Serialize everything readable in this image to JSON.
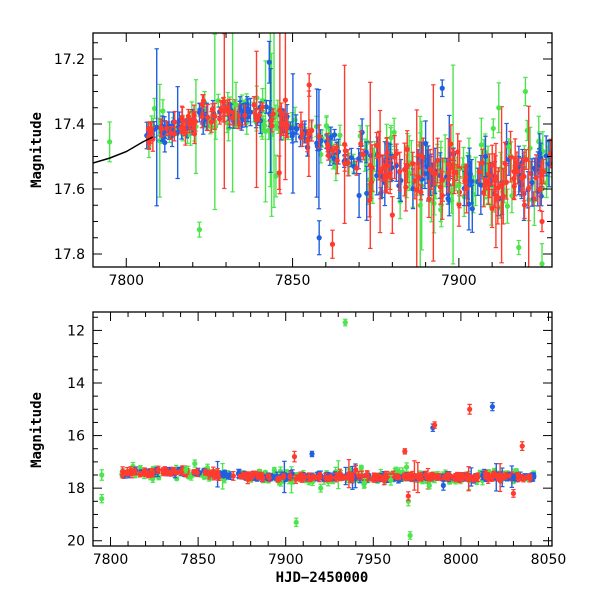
{
  "colors": {
    "green": "#4ee44e",
    "blue": "#1f5fe0",
    "red": "#ff3b2f",
    "model": "#000000"
  },
  "chart_data": [
    {
      "type": "scatter",
      "xlim": [
        7790,
        7928
      ],
      "ylim": [
        17.84,
        17.12
      ],
      "y_inverted": true,
      "grid": false,
      "ylabel": "Magnitude",
      "xlabel": "",
      "xticks": [
        7800,
        7850,
        7900
      ],
      "yticks": [
        17.2,
        17.4,
        17.6,
        17.8
      ],
      "model_curve": {
        "x": [
          7790,
          7795,
          7800,
          7805,
          7808
        ],
        "y": [
          17.52,
          17.505,
          17.485,
          17.455,
          17.44
        ]
      },
      "series": [
        {
          "color_key": "green",
          "isolated": [
            [
              7795,
              17.455
            ],
            [
              7822,
              17.725
            ],
            [
              7845,
              17.56
            ],
            [
              7833,
              17.34
            ],
            [
              7900,
              17.59
            ],
            [
              7915,
              17.47
            ],
            [
              7912,
              17.35
            ],
            [
              7918,
              17.78
            ],
            [
              7925,
              17.83
            ],
            [
              7920,
              17.3
            ]
          ]
        },
        {
          "color_key": "blue",
          "isolated": [
            [
              7843,
              17.21
            ],
            [
              7858,
              17.75
            ],
            [
              7870,
              17.62
            ],
            [
              7890,
              17.46
            ],
            [
              7895,
              17.29
            ],
            [
              7908,
              17.5
            ],
            [
              7922,
              17.58
            ]
          ]
        },
        {
          "color_key": "red",
          "isolated": [
            [
              7855,
              17.28
            ],
            [
              7862,
              17.77
            ],
            [
              7880,
              17.68
            ],
            [
              7895,
              17.62
            ],
            [
              7902,
              17.58
            ],
            [
              7910,
              17.66
            ],
            [
              7925,
              17.7
            ],
            [
              7846,
              17.55
            ]
          ]
        }
      ]
    },
    {
      "type": "scatter",
      "xlim": [
        7790,
        8052
      ],
      "ylim": [
        20.2,
        11.3
      ],
      "y_inverted": true,
      "grid": false,
      "ylabel": "Magnitude",
      "xlabel": "HJD−2450000",
      "xticks": [
        7800,
        7850,
        7900,
        7950,
        8000,
        8050
      ],
      "yticks": [
        12,
        14,
        16,
        18,
        20
      ],
      "series": [
        {
          "color_key": "green",
          "isolated": [
            [
              7795,
              17.5
            ],
            [
              7795,
              18.4
            ],
            [
              7843,
              17.3
            ],
            [
              7906,
              19.3
            ],
            [
              7934,
              11.7
            ],
            [
              7970,
              18.5
            ],
            [
              7971,
              19.8
            ],
            [
              7969,
              17.2
            ],
            [
              7945,
              17.8
            ],
            [
              7982,
              17.9
            ],
            [
              7960,
              17.7
            ],
            [
              7920,
              18.0
            ]
          ]
        },
        {
          "color_key": "blue",
          "isolated": [
            [
              7984,
              15.7
            ],
            [
              8018,
              14.9
            ],
            [
              7915,
              16.7
            ],
            [
              7990,
              17.9
            ],
            [
              8030,
              17.6
            ]
          ]
        },
        {
          "color_key": "red",
          "isolated": [
            [
              7905,
              16.8
            ],
            [
              7970,
              18.3
            ],
            [
              7985,
              15.6
            ],
            [
              8005,
              15.0
            ],
            [
              8035,
              16.4
            ],
            [
              8030,
              18.2
            ],
            [
              7968,
              16.6
            ],
            [
              7940,
              17.3
            ]
          ]
        }
      ]
    }
  ]
}
